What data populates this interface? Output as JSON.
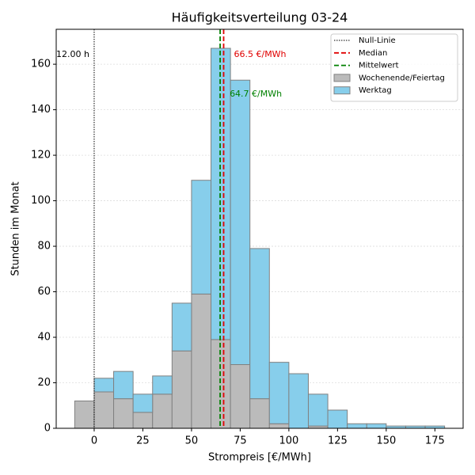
{
  "chart_data": {
    "type": "histogram",
    "title": "Häufigkeitsverteilung 03-24",
    "x_label": "Strompreis [€/MWh]",
    "y_label": "Stunden im Monat",
    "bins": [
      -10,
      0,
      10,
      20,
      30,
      40,
      50,
      60,
      70,
      80,
      90,
      100,
      110,
      120,
      130,
      140,
      150,
      160,
      170,
      180
    ],
    "stacked": true,
    "series": [
      {
        "name": "Wochenende/Feiertag",
        "color": "#bbbbbb",
        "values": [
          12,
          16,
          13,
          7,
          15,
          34,
          59,
          39,
          28,
          13,
          2,
          0,
          1,
          0,
          0,
          0,
          0,
          0,
          0
        ]
      },
      {
        "name": "Werktag",
        "color": "#87ceeb",
        "values": [
          0,
          6,
          12,
          8,
          8,
          21,
          50,
          128,
          125,
          66,
          27,
          24,
          14,
          8,
          2,
          2,
          1,
          1,
          1
        ]
      }
    ],
    "edge_color": "#808080",
    "vlines": [
      {
        "name": "Null-Linie",
        "value": 0,
        "color": "#000000",
        "style": "dotted"
      },
      {
        "name": "Median",
        "value": 66.5,
        "color": "#e00000",
        "style": "dashed"
      },
      {
        "name": "Mittelwert",
        "value": 64.7,
        "color": "#008000",
        "style": "dashed"
      }
    ],
    "annotations": [
      {
        "text": "12.00 h",
        "color": "#000000"
      },
      {
        "text": "66.5 €/MWh",
        "color": "#e00000"
      },
      {
        "text": "64.7 €/MWh",
        "color": "#008000"
      }
    ],
    "xlim": [
      -19.5,
      189.5
    ],
    "xticks": [
      0,
      25,
      50,
      75,
      100,
      125,
      150,
      175
    ],
    "ylim": [
      0,
      175.35
    ],
    "yticks": [
      0,
      20,
      40,
      60,
      80,
      100,
      120,
      140,
      160
    ],
    "grid": true,
    "legend_loc": "upper right"
  }
}
